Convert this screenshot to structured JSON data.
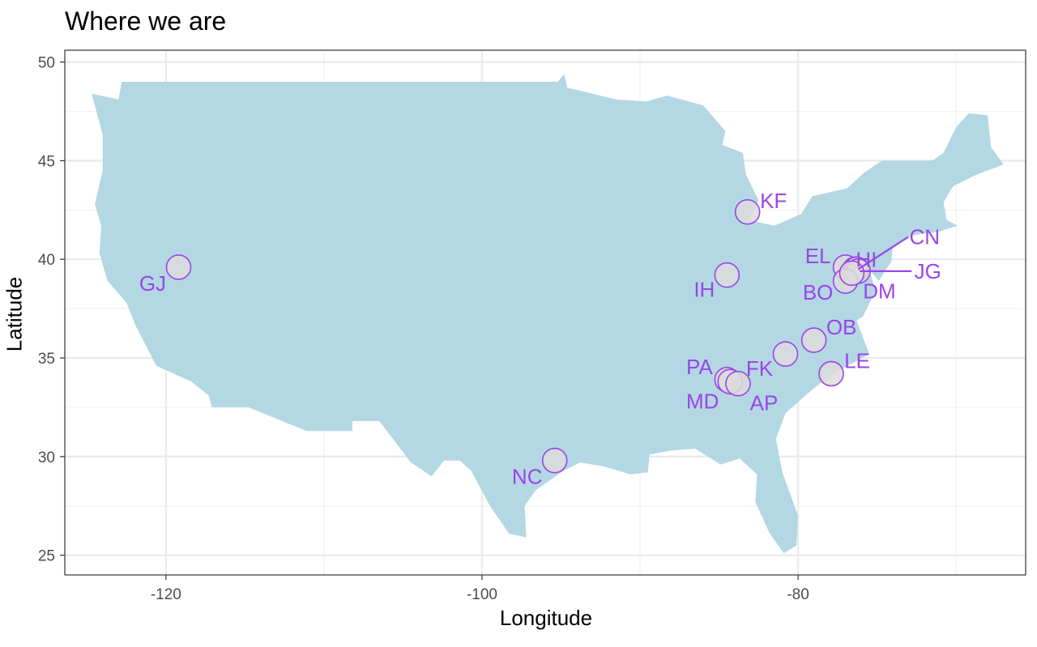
{
  "chart_data": {
    "type": "scatter",
    "title": "Where we are",
    "xlabel": "Longitude",
    "ylabel": "Latitude",
    "xlim": [
      -126.4,
      -65.6
    ],
    "ylim": [
      24.0,
      50.6
    ],
    "xticks": [
      -120,
      -100,
      -80
    ],
    "xtick_labels": [
      "-120",
      "-100",
      "-80"
    ],
    "yticks": [
      25,
      30,
      35,
      40,
      45,
      50
    ],
    "ytick_labels": [
      "25",
      "30",
      "35",
      "40",
      "45",
      "50"
    ],
    "grid": true,
    "map_fill": "#b3d8e3",
    "point_fill": "#dcdcdc",
    "point_stroke": "#9b45e8",
    "label_color": "#9b45e8",
    "points": [
      {
        "label": "GJ",
        "lon": -119.2,
        "lat": 39.6
      },
      {
        "label": "KF",
        "lon": -83.2,
        "lat": 42.4
      },
      {
        "label": "IH",
        "lon": -84.5,
        "lat": 39.2
      },
      {
        "label": "EL",
        "lon": -77.0,
        "lat": 39.6
      },
      {
        "label": "HI",
        "lon": -76.4,
        "lat": 39.5
      },
      {
        "label": "CN",
        "lon": -76.3,
        "lat": 39.5
      },
      {
        "label": "JG",
        "lon": -76.2,
        "lat": 39.4
      },
      {
        "label": "BO",
        "lon": -77.0,
        "lat": 38.9
      },
      {
        "label": "DM",
        "lon": -76.6,
        "lat": 39.3
      },
      {
        "label": "OB",
        "lon": -79.0,
        "lat": 35.9
      },
      {
        "label": "FK",
        "lon": -80.8,
        "lat": 35.2
      },
      {
        "label": "LE",
        "lon": -77.9,
        "lat": 34.2
      },
      {
        "label": "PA",
        "lon": -84.5,
        "lat": 33.9
      },
      {
        "label": "MD",
        "lon": -84.3,
        "lat": 33.8
      },
      {
        "label": "AP",
        "lon": -83.8,
        "lat": 33.7
      },
      {
        "label": "NC",
        "lon": -95.4,
        "lat": 29.8
      }
    ],
    "usa_outline": [
      [
        -124.7,
        48.4
      ],
      [
        -123.0,
        48.1
      ],
      [
        -122.8,
        49.0
      ],
      [
        -95.2,
        49.0
      ],
      [
        -94.8,
        49.4
      ],
      [
        -94.6,
        48.7
      ],
      [
        -91.5,
        48.1
      ],
      [
        -89.6,
        48.0
      ],
      [
        -88.3,
        48.3
      ],
      [
        -86.0,
        47.8
      ],
      [
        -84.6,
        46.5
      ],
      [
        -84.8,
        45.8
      ],
      [
        -83.5,
        45.4
      ],
      [
        -83.3,
        44.3
      ],
      [
        -82.5,
        43.0
      ],
      [
        -82.7,
        42.6
      ],
      [
        -83.2,
        42.0
      ],
      [
        -81.5,
        41.7
      ],
      [
        -79.8,
        42.3
      ],
      [
        -79.1,
        43.2
      ],
      [
        -76.9,
        43.6
      ],
      [
        -75.8,
        44.4
      ],
      [
        -74.7,
        45.0
      ],
      [
        -71.5,
        45.0
      ],
      [
        -70.8,
        45.4
      ],
      [
        -70.0,
        46.7
      ],
      [
        -69.2,
        47.4
      ],
      [
        -68.0,
        47.3
      ],
      [
        -67.8,
        45.7
      ],
      [
        -67.0,
        44.8
      ],
      [
        -68.7,
        44.3
      ],
      [
        -70.2,
        43.7
      ],
      [
        -70.8,
        42.9
      ],
      [
        -70.6,
        42.0
      ],
      [
        -69.9,
        41.7
      ],
      [
        -71.1,
        41.4
      ],
      [
        -72.9,
        41.2
      ],
      [
        -74.0,
        40.6
      ],
      [
        -74.1,
        39.9
      ],
      [
        -74.9,
        38.9
      ],
      [
        -75.5,
        39.5
      ],
      [
        -75.1,
        38.4
      ],
      [
        -75.9,
        37.1
      ],
      [
        -76.3,
        36.9
      ],
      [
        -75.5,
        35.2
      ],
      [
        -76.4,
        34.8
      ],
      [
        -77.8,
        34.2
      ],
      [
        -79.1,
        33.4
      ],
      [
        -80.8,
        32.2
      ],
      [
        -81.4,
        30.9
      ],
      [
        -81.0,
        29.2
      ],
      [
        -80.0,
        27.0
      ],
      [
        -80.1,
        25.5
      ],
      [
        -80.9,
        25.1
      ],
      [
        -81.8,
        26.1
      ],
      [
        -82.7,
        27.7
      ],
      [
        -82.6,
        29.1
      ],
      [
        -83.7,
        29.9
      ],
      [
        -84.9,
        29.6
      ],
      [
        -86.5,
        30.4
      ],
      [
        -88.1,
        30.3
      ],
      [
        -89.4,
        30.1
      ],
      [
        -89.5,
        29.2
      ],
      [
        -90.6,
        29.1
      ],
      [
        -92.3,
        29.5
      ],
      [
        -93.8,
        29.7
      ],
      [
        -94.8,
        29.3
      ],
      [
        -96.6,
        28.3
      ],
      [
        -97.3,
        27.5
      ],
      [
        -97.2,
        25.9
      ],
      [
        -98.3,
        26.1
      ],
      [
        -99.5,
        27.5
      ],
      [
        -100.7,
        29.3
      ],
      [
        -101.4,
        29.8
      ],
      [
        -102.4,
        29.8
      ],
      [
        -103.2,
        29.0
      ],
      [
        -104.5,
        29.7
      ],
      [
        -106.5,
        31.8
      ],
      [
        -108.2,
        31.8
      ],
      [
        -108.2,
        31.3
      ],
      [
        -111.1,
        31.3
      ],
      [
        -114.8,
        32.5
      ],
      [
        -117.1,
        32.5
      ],
      [
        -117.3,
        33.1
      ],
      [
        -118.4,
        33.8
      ],
      [
        -120.6,
        34.6
      ],
      [
        -121.9,
        36.6
      ],
      [
        -122.5,
        37.8
      ],
      [
        -123.7,
        38.9
      ],
      [
        -124.2,
        40.3
      ],
      [
        -124.1,
        41.7
      ],
      [
        -124.5,
        42.8
      ],
      [
        -124.0,
        44.5
      ],
      [
        -124.0,
        46.3
      ],
      [
        -124.7,
        48.4
      ]
    ]
  }
}
